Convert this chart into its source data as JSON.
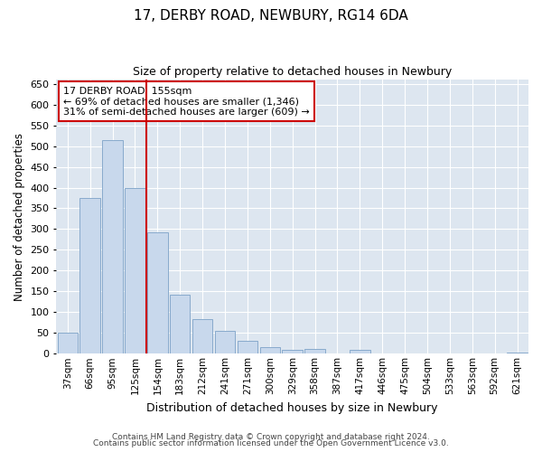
{
  "title": "17, DERBY ROAD, NEWBURY, RG14 6DA",
  "subtitle": "Size of property relative to detached houses in Newbury",
  "xlabel": "Distribution of detached houses by size in Newbury",
  "ylabel": "Number of detached properties",
  "categories": [
    "37sqm",
    "66sqm",
    "95sqm",
    "125sqm",
    "154sqm",
    "183sqm",
    "212sqm",
    "241sqm",
    "271sqm",
    "300sqm",
    "329sqm",
    "358sqm",
    "387sqm",
    "417sqm",
    "446sqm",
    "475sqm",
    "504sqm",
    "533sqm",
    "563sqm",
    "592sqm",
    "621sqm"
  ],
  "values": [
    50,
    375,
    515,
    400,
    293,
    142,
    83,
    55,
    30,
    15,
    10,
    12,
    0,
    10,
    0,
    0,
    0,
    0,
    0,
    0,
    3
  ],
  "bar_color": "#c8d8ec",
  "bar_edgecolor": "#88aacc",
  "highlight_index": 4,
  "highlight_color": "#cc0000",
  "ylim": [
    0,
    660
  ],
  "yticks": [
    0,
    50,
    100,
    150,
    200,
    250,
    300,
    350,
    400,
    450,
    500,
    550,
    600,
    650
  ],
  "annotation_text": "17 DERBY ROAD: 155sqm\n← 69% of detached houses are smaller (1,346)\n31% of semi-detached houses are larger (609) →",
  "annotation_box_color": "#cc0000",
  "plot_bg_color": "#dde6f0",
  "fig_bg_color": "#ffffff",
  "grid_color": "#ffffff",
  "footer_line1": "Contains HM Land Registry data © Crown copyright and database right 2024.",
  "footer_line2": "Contains public sector information licensed under the Open Government Licence v3.0."
}
